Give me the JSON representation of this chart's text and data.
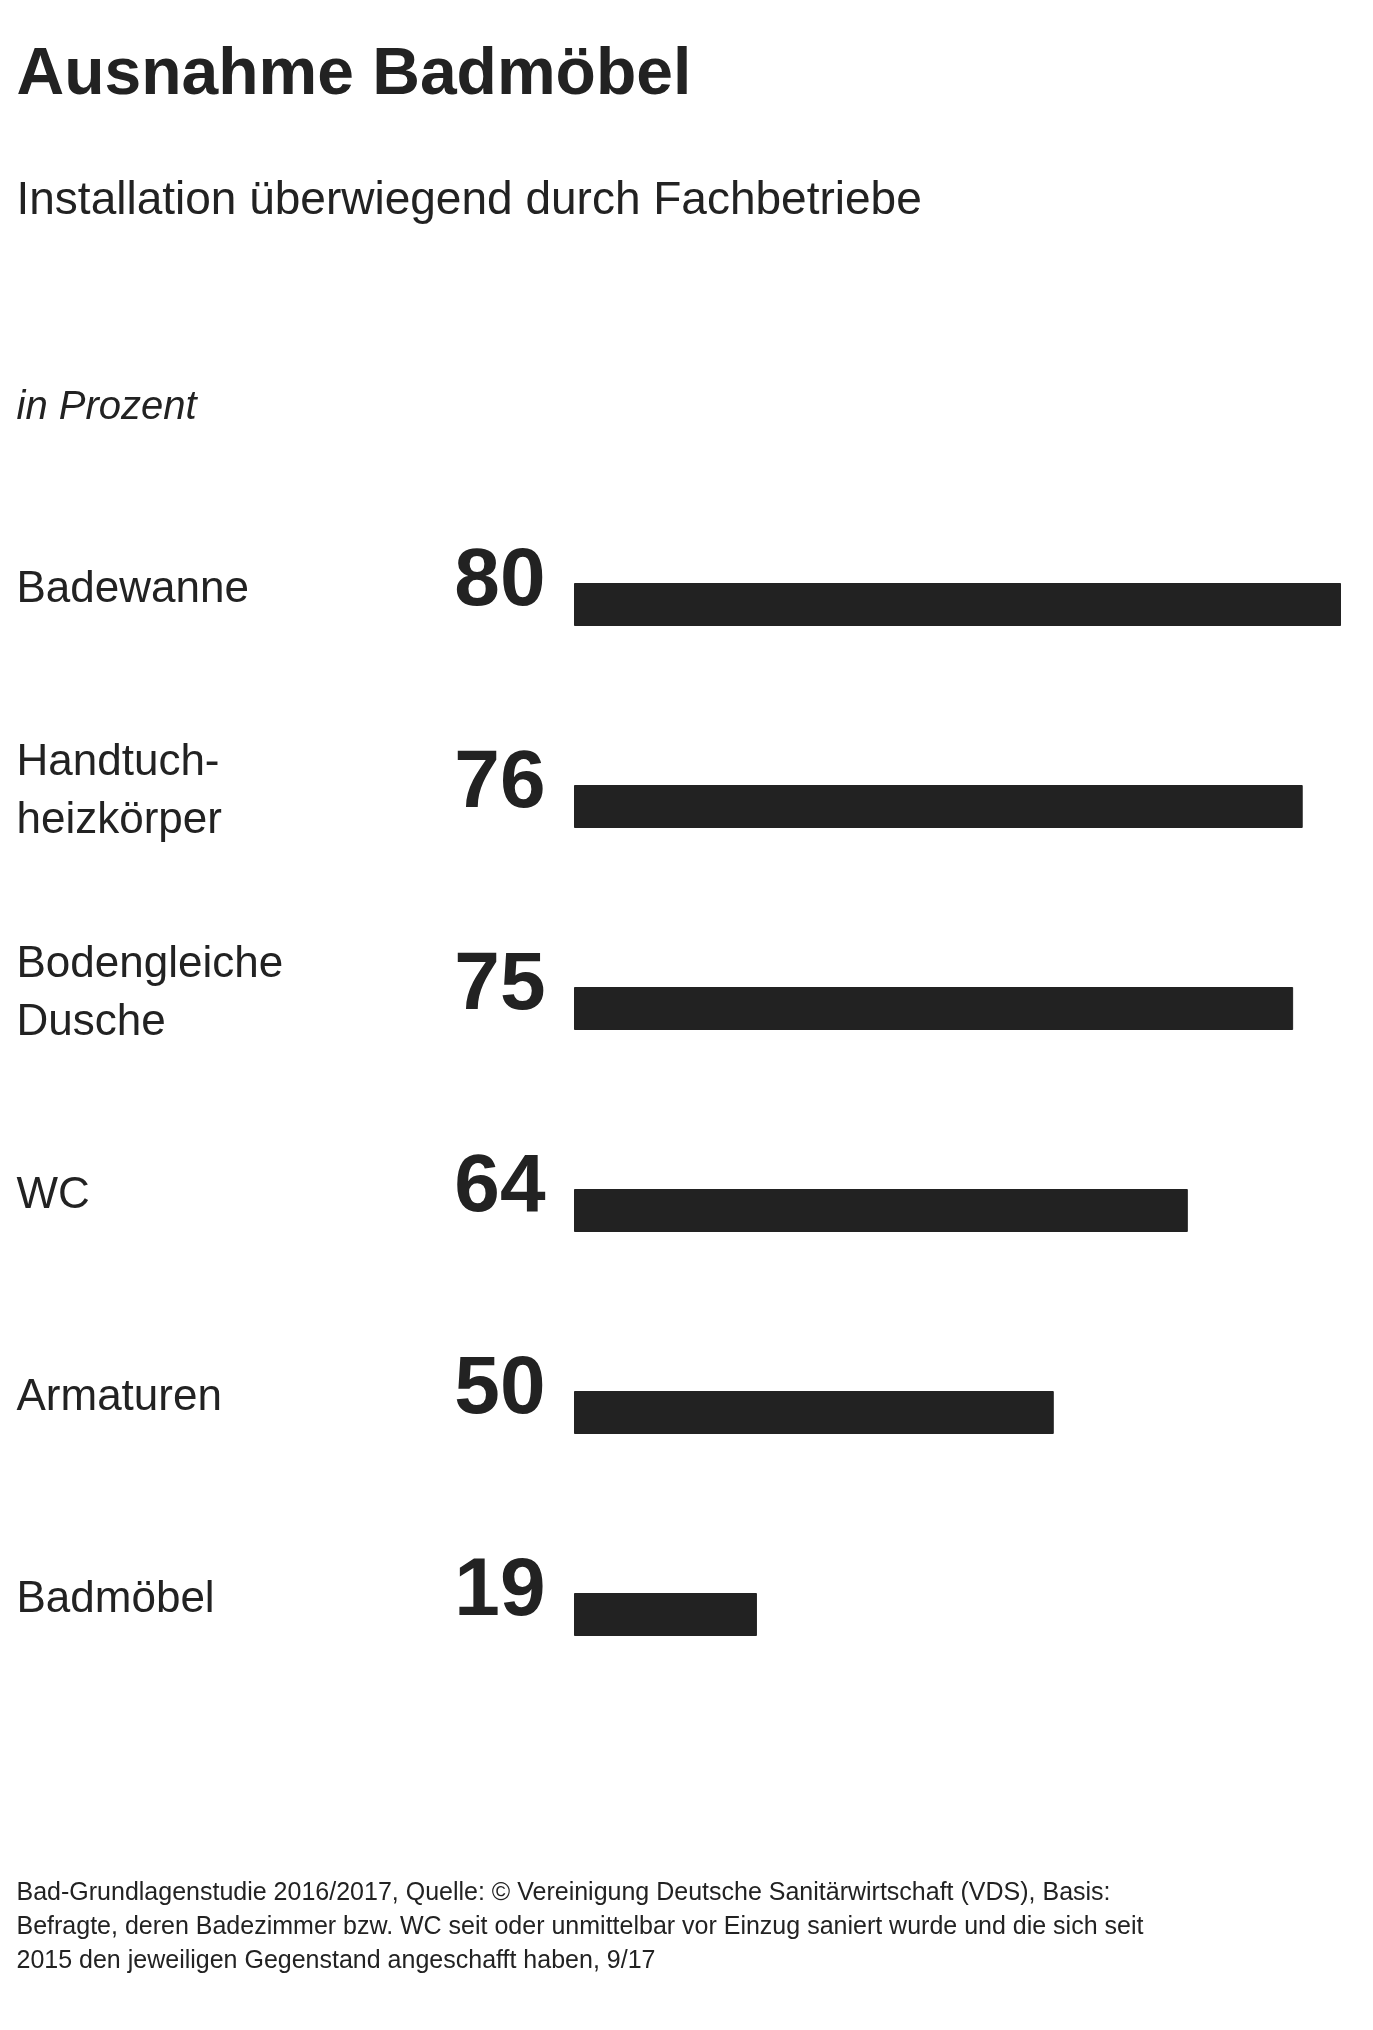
{
  "chart_data": {
    "type": "bar",
    "orientation": "horizontal",
    "title": "Ausnahme Badmöbel",
    "subtitle": "Installation überwiegend durch Fachbetriebe",
    "annotations": [
      "in Prozent",
      "Bad-Grundlagenstudie 2016/2017, Quelle: © Vereinigung Deutsche Sanitärwirtschaft (VDS), Basis: Befragte, deren Badezimmer bzw. WC seit oder unmittelbar vor Einzug saniert wurde und die sich seit 2015 den jeweiligen Gegenstand angeschafft haben, 9/17"
    ],
    "categories": [
      "Badewanne",
      "Handtuch-\nheizkörper",
      "Bodengleiche\nDusche",
      "WC",
      "Armaturen",
      "Badmöbel"
    ],
    "values": [
      80,
      76,
      75,
      64,
      50,
      19
    ],
    "color": "#222222",
    "data_labels": true
  }
}
